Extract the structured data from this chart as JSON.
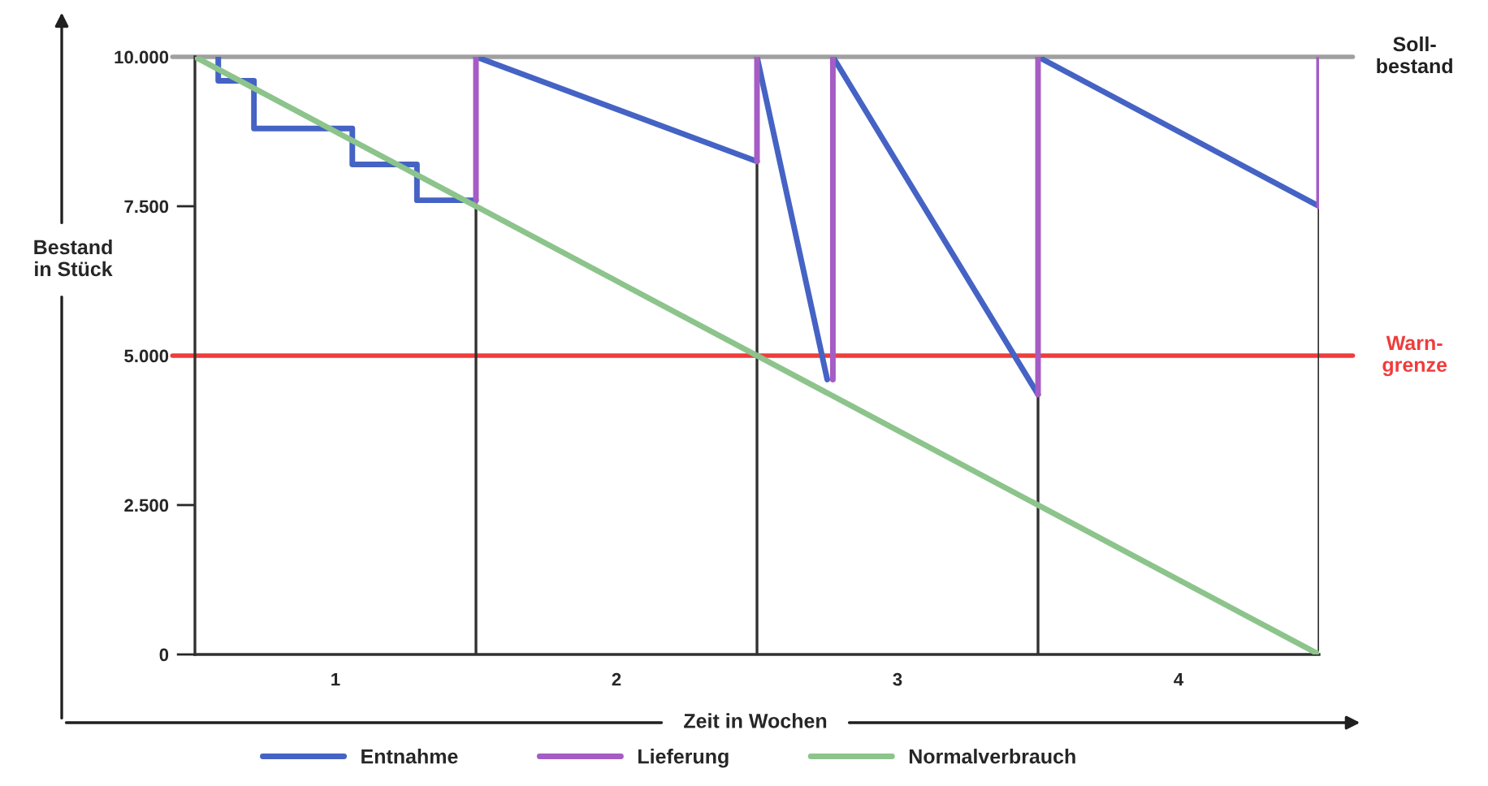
{
  "chart_data": {
    "type": "line",
    "xlabel": "Zeit in Wochen",
    "ylabel": "Bestand\nin Stück",
    "xlim": [
      0,
      4
    ],
    "ylim": [
      0,
      10000
    ],
    "xticks": [
      {
        "value": 0.5,
        "label": "1"
      },
      {
        "value": 1.5,
        "label": "2"
      },
      {
        "value": 2.5,
        "label": "3"
      },
      {
        "value": 3.5,
        "label": "4"
      }
    ],
    "yticks": [
      {
        "value": 0,
        "label": "0"
      },
      {
        "value": 2500,
        "label": "2.500"
      },
      {
        "value": 5000,
        "label": "5.000"
      },
      {
        "value": 7500,
        "label": "7.500"
      },
      {
        "value": 10000,
        "label": "10.000"
      }
    ],
    "series": [
      {
        "name": "Entnahme",
        "color": "#4563c4",
        "x": [
          0.083,
          0.083,
          0.21,
          0.21,
          0.56,
          0.56,
          0.79,
          0.79,
          1,
          null,
          1,
          2,
          null,
          2,
          2.25,
          null,
          2.27,
          3,
          null,
          3,
          4
        ],
        "values": [
          10000,
          9600,
          9600,
          8800,
          8800,
          8200,
          8200,
          7600,
          7600,
          null,
          10000,
          8250,
          null,
          10000,
          4600,
          null,
          10000,
          4350,
          null,
          10000,
          7500
        ]
      },
      {
        "name": "Lieferung",
        "color": "#a55cc4",
        "x": [
          1,
          1,
          null,
          2,
          2,
          null,
          2.27,
          2.27,
          null,
          3,
          3,
          null,
          4,
          4
        ],
        "values": [
          7600,
          10000,
          null,
          8250,
          10000,
          null,
          4600,
          10000,
          null,
          4350,
          10000,
          null,
          7500,
          10000
        ]
      },
      {
        "name": "Normalverbrauch",
        "color": "#8cc48c",
        "x": [
          0,
          4
        ],
        "values": [
          10000,
          0
        ]
      }
    ],
    "ref_lines": [
      {
        "axis": "y",
        "value": 10000,
        "label": "Soll-\nbestand",
        "color": "#a0a0a0"
      },
      {
        "axis": "y",
        "value": 5000,
        "label": "Warn-\ngrenze",
        "color": "#f03c3c"
      },
      {
        "axis": "x",
        "value": 1,
        "color": "#303030"
      },
      {
        "axis": "x",
        "value": 2,
        "color": "#303030"
      },
      {
        "axis": "x",
        "value": 3,
        "color": "#303030"
      },
      {
        "axis": "x",
        "value": 4,
        "color": "#303030"
      }
    ],
    "legend": "bottom",
    "grid": false,
    "marker": "none",
    "line_style": "solid"
  }
}
